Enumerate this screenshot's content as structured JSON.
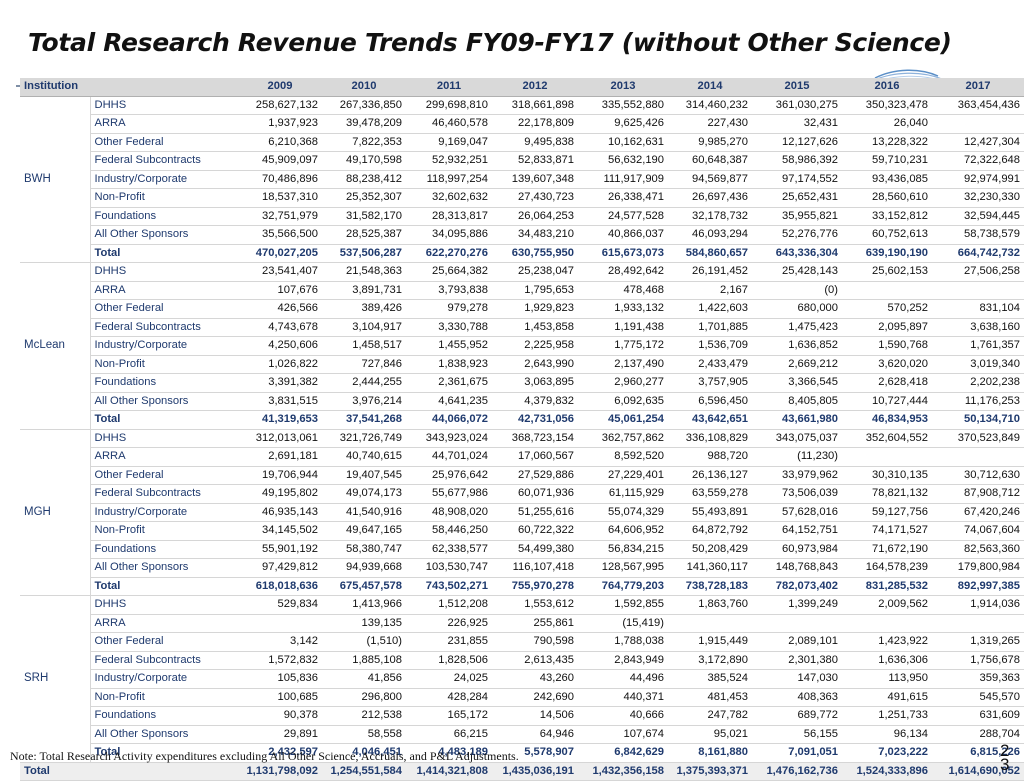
{
  "title": "Total Research Revenue Trends FY09-FY17 (without Other Science)",
  "header": {
    "institution": "Institution",
    "years": [
      "2009",
      "2010",
      "2011",
      "2012",
      "2013",
      "2014",
      "2015",
      "2016",
      "2017"
    ]
  },
  "categories": [
    "DHHS",
    "ARRA",
    "Other Federal",
    "Federal Subcontracts",
    "Industry/Corporate",
    "Non-Profit",
    "Foundations",
    "All Other Sponsors",
    "Total"
  ],
  "institutions": [
    {
      "name": "BWH",
      "rows": [
        [
          "258,627,132",
          "267,336,850",
          "299,698,810",
          "318,661,898",
          "335,552,880",
          "314,460,232",
          "361,030,275",
          "350,323,478",
          "363,454,436"
        ],
        [
          "1,937,923",
          "39,478,209",
          "46,460,578",
          "22,178,809",
          "9,625,426",
          "227,430",
          "32,431",
          "26,040",
          ""
        ],
        [
          "6,210,368",
          "7,822,353",
          "9,169,047",
          "9,495,838",
          "10,162,631",
          "9,985,270",
          "12,127,626",
          "13,228,322",
          "12,427,304"
        ],
        [
          "45,909,097",
          "49,170,598",
          "52,932,251",
          "52,833,871",
          "56,632,190",
          "60,648,387",
          "58,986,392",
          "59,710,231",
          "72,322,648"
        ],
        [
          "70,486,896",
          "88,238,412",
          "118,997,254",
          "139,607,348",
          "111,917,909",
          "94,569,877",
          "97,174,552",
          "93,436,085",
          "92,974,991"
        ],
        [
          "18,537,310",
          "25,352,307",
          "32,602,632",
          "27,430,723",
          "26,338,471",
          "26,697,436",
          "25,652,431",
          "28,560,610",
          "32,230,330"
        ],
        [
          "32,751,979",
          "31,582,170",
          "28,313,817",
          "26,064,253",
          "24,577,528",
          "32,178,732",
          "35,955,821",
          "33,152,812",
          "32,594,445"
        ],
        [
          "35,566,500",
          "28,525,387",
          "34,095,886",
          "34,483,210",
          "40,866,037",
          "46,093,294",
          "52,276,776",
          "60,752,613",
          "58,738,579"
        ],
        [
          "470,027,205",
          "537,506,287",
          "622,270,276",
          "630,755,950",
          "615,673,073",
          "584,860,657",
          "643,336,304",
          "639,190,190",
          "664,742,732"
        ]
      ]
    },
    {
      "name": "McLean",
      "rows": [
        [
          "23,541,407",
          "21,548,363",
          "25,664,382",
          "25,238,047",
          "28,492,642",
          "26,191,452",
          "25,428,143",
          "25,602,153",
          "27,506,258"
        ],
        [
          "107,676",
          "3,891,731",
          "3,793,838",
          "1,795,653",
          "478,468",
          "2,167",
          "(0)",
          "",
          ""
        ],
        [
          "426,566",
          "389,426",
          "979,278",
          "1,929,823",
          "1,933,132",
          "1,422,603",
          "680,000",
          "570,252",
          "831,104"
        ],
        [
          "4,743,678",
          "3,104,917",
          "3,330,788",
          "1,453,858",
          "1,191,438",
          "1,701,885",
          "1,475,423",
          "2,095,897",
          "3,638,160"
        ],
        [
          "4,250,606",
          "1,458,517",
          "1,455,952",
          "2,225,958",
          "1,775,172",
          "1,536,709",
          "1,636,852",
          "1,590,768",
          "1,761,357"
        ],
        [
          "1,026,822",
          "727,846",
          "1,838,923",
          "2,643,990",
          "2,137,490",
          "2,433,479",
          "2,669,212",
          "3,620,020",
          "3,019,340"
        ],
        [
          "3,391,382",
          "2,444,255",
          "2,361,675",
          "3,063,895",
          "2,960,277",
          "3,757,905",
          "3,366,545",
          "2,628,418",
          "2,202,238"
        ],
        [
          "3,831,515",
          "3,976,214",
          "4,641,235",
          "4,379,832",
          "6,092,635",
          "6,596,450",
          "8,405,805",
          "10,727,444",
          "11,176,253"
        ],
        [
          "41,319,653",
          "37,541,268",
          "44,066,072",
          "42,731,056",
          "45,061,254",
          "43,642,651",
          "43,661,980",
          "46,834,953",
          "50,134,710"
        ]
      ]
    },
    {
      "name": "MGH",
      "rows": [
        [
          "312,013,061",
          "321,726,749",
          "343,923,024",
          "368,723,154",
          "362,757,862",
          "336,108,829",
          "343,075,037",
          "352,604,552",
          "370,523,849"
        ],
        [
          "2,691,181",
          "40,740,615",
          "44,701,024",
          "17,060,567",
          "8,592,520",
          "988,720",
          "(11,230)",
          "",
          ""
        ],
        [
          "19,706,944",
          "19,407,545",
          "25,976,642",
          "27,529,886",
          "27,229,401",
          "26,136,127",
          "33,979,962",
          "30,310,135",
          "30,712,630"
        ],
        [
          "49,195,802",
          "49,074,173",
          "55,677,986",
          "60,071,936",
          "61,115,929",
          "63,559,278",
          "73,506,039",
          "78,821,132",
          "87,908,712"
        ],
        [
          "46,935,143",
          "41,540,916",
          "48,908,020",
          "51,255,616",
          "55,074,329",
          "55,493,891",
          "57,628,016",
          "59,127,756",
          "67,420,246"
        ],
        [
          "34,145,502",
          "49,647,165",
          "58,446,250",
          "60,722,322",
          "64,606,952",
          "64,872,792",
          "64,152,751",
          "74,171,527",
          "74,067,604"
        ],
        [
          "55,901,192",
          "58,380,747",
          "62,338,577",
          "54,499,380",
          "56,834,215",
          "50,208,429",
          "60,973,984",
          "71,672,190",
          "82,563,360"
        ],
        [
          "97,429,812",
          "94,939,668",
          "103,530,747",
          "116,107,418",
          "128,567,995",
          "141,360,117",
          "148,768,843",
          "164,578,239",
          "179,800,984"
        ],
        [
          "618,018,636",
          "675,457,578",
          "743,502,271",
          "755,970,278",
          "764,779,203",
          "738,728,183",
          "782,073,402",
          "831,285,532",
          "892,997,385"
        ]
      ]
    },
    {
      "name": "SRH",
      "rows": [
        [
          "529,834",
          "1,413,966",
          "1,512,208",
          "1,553,612",
          "1,592,855",
          "1,863,760",
          "1,399,249",
          "2,009,562",
          "1,914,036"
        ],
        [
          "",
          "139,135",
          "226,925",
          "255,861",
          "(15,419)",
          "",
          "",
          "",
          ""
        ],
        [
          "3,142",
          "(1,510)",
          "231,855",
          "790,598",
          "1,788,038",
          "1,915,449",
          "2,089,101",
          "1,423,922",
          "1,319,265"
        ],
        [
          "1,572,832",
          "1,885,108",
          "1,828,506",
          "2,613,435",
          "2,843,949",
          "3,172,890",
          "2,301,380",
          "1,636,306",
          "1,756,678"
        ],
        [
          "105,836",
          "41,856",
          "24,025",
          "43,260",
          "44,496",
          "385,524",
          "147,030",
          "113,950",
          "359,363"
        ],
        [
          "100,685",
          "296,800",
          "428,284",
          "242,690",
          "440,371",
          "481,453",
          "408,363",
          "491,615",
          "545,570"
        ],
        [
          "90,378",
          "212,538",
          "165,172",
          "14,506",
          "40,666",
          "247,782",
          "689,772",
          "1,251,733",
          "631,609"
        ],
        [
          "29,891",
          "58,558",
          "66,215",
          "64,946",
          "107,674",
          "95,021",
          "56,155",
          "96,134",
          "288,704"
        ],
        [
          "2,432,597",
          "4,046,451",
          "4,483,189",
          "5,578,907",
          "6,842,629",
          "8,161,880",
          "7,091,051",
          "7,023,222",
          "6,815,226"
        ]
      ]
    }
  ],
  "grand_total": {
    "label": "Total",
    "values": [
      "1,131,798,092",
      "1,254,551,584",
      "1,414,321,808",
      "1,435,036,191",
      "1,432,356,158",
      "1,375,393,371",
      "1,476,162,736",
      "1,524,333,896",
      "1,614,690,052"
    ]
  },
  "note": "Note: Total Research Activity expenditures excluding All Other Science, Accruals, and P&L Adjustments.",
  "page_number": "2\n3"
}
